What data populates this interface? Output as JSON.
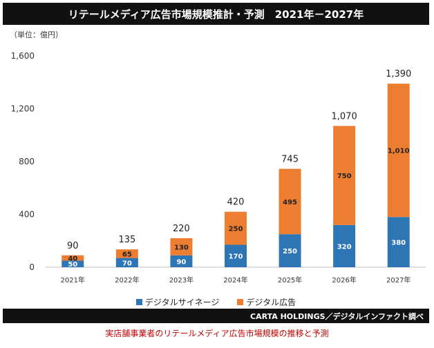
{
  "title": "リテールメディア広告市場規模推計・予測　2021年－2027年",
  "unit_label": "（単位：億円）",
  "source": "CARTA HOLDINGS／デジタルインファクト調べ",
  "caption": "実店舗事業者のリテールメディア広告市場規模の推移と予測",
  "colors": {
    "digital_signage": "#2e75b6",
    "digital_ads": "#ed7d31"
  },
  "chart_data": {
    "type": "bar",
    "stacked": true,
    "categories": [
      "2021年",
      "2022年",
      "2023年",
      "2024年",
      "2025年",
      "2026年",
      "2027年"
    ],
    "series": [
      {
        "name": "デジタルサイネージ",
        "values": [
          50,
          70,
          90,
          170,
          250,
          320,
          380
        ],
        "labels": [
          "50",
          "70",
          "90",
          "170",
          "250",
          "320",
          "380"
        ]
      },
      {
        "name": "デジタル広告",
        "values": [
          40,
          65,
          130,
          250,
          495,
          750,
          1010
        ],
        "labels": [
          "40",
          "65",
          "130",
          "250",
          "495",
          "750",
          "1,010"
        ]
      }
    ],
    "totals": [
      90,
      135,
      220,
      420,
      745,
      1070,
      1390
    ],
    "total_labels": [
      "90",
      "135",
      "220",
      "420",
      "745",
      "1,070",
      "1,390"
    ],
    "y_ticks": [
      0,
      400,
      800,
      1200,
      1600
    ],
    "y_tick_labels": [
      "0",
      "400",
      "800",
      "1,200",
      "1,600"
    ],
    "ylim": [
      0,
      1600
    ],
    "legend_position": "bottom",
    "grid": false
  }
}
